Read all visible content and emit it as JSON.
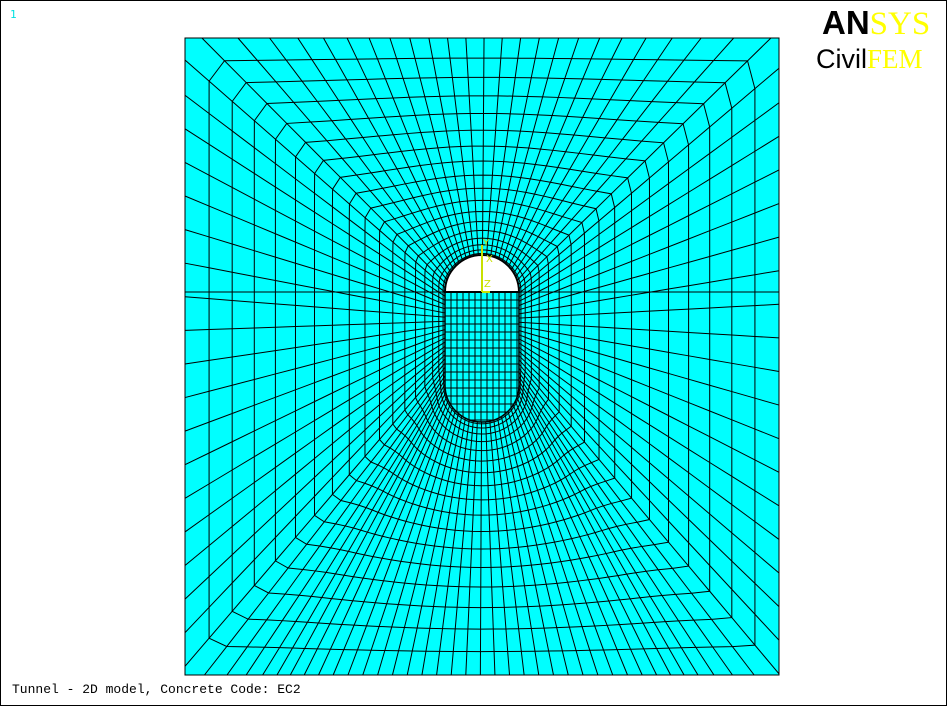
{
  "window_number": "1",
  "logo": {
    "an": "AN",
    "sys": "SYS",
    "civil": "Civil",
    "fem": "FEM"
  },
  "triad": {
    "y": "Y",
    "x": "X",
    "z": "Z"
  },
  "caption": "Tunnel - 2D model, Concrete Code: EC2"
}
